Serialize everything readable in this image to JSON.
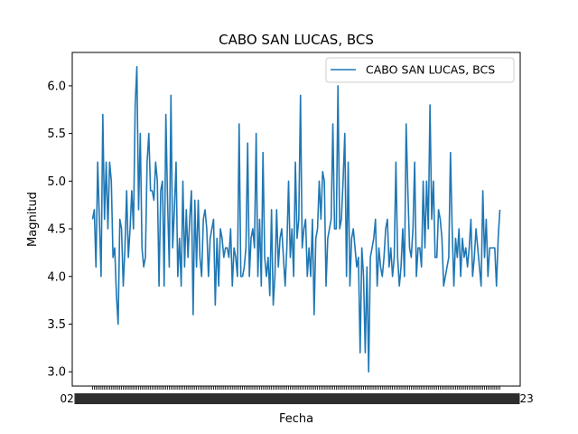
{
  "chart_data": {
    "type": "line",
    "title": "CABO SAN LUCAS, BCS",
    "xlabel": "Fecha",
    "ylabel": "Magnitud",
    "ylim": [
      2.85,
      6.35
    ],
    "yticks": [
      3.0,
      3.5,
      4.0,
      4.5,
      5.0,
      5.5,
      6.0
    ],
    "ytick_labels": [
      "3.0",
      "3.5",
      "4.0",
      "4.5",
      "5.0",
      "5.5",
      "6.0"
    ],
    "xticks_note": "",
    "x_first_tick_label": "02",
    "x_last_tick_label": "23",
    "grid": false,
    "legend_position": "top-right",
    "colors": {
      "series": "#1f77b4"
    },
    "series": [
      {
        "name": "CABO SAN LUCAS, BCS",
        "values": [
          4.6,
          4.7,
          4.1,
          5.2,
          4.6,
          4.0,
          5.7,
          4.6,
          5.2,
          4.5,
          5.2,
          5.0,
          4.2,
          4.3,
          3.8,
          3.5,
          4.6,
          4.5,
          3.9,
          4.3,
          4.9,
          4.2,
          4.5,
          4.9,
          4.5,
          5.8,
          6.2,
          4.7,
          5.5,
          4.3,
          4.1,
          4.2,
          5.2,
          5.5,
          4.9,
          4.9,
          4.8,
          5.2,
          5.0,
          3.9,
          4.9,
          5.0,
          3.9,
          5.7,
          4.8,
          4.1,
          5.9,
          4.3,
          4.7,
          5.2,
          4.0,
          4.4,
          3.9,
          5.0,
          4.1,
          4.7,
          4.2,
          4.6,
          4.9,
          3.6,
          4.8,
          4.1,
          4.8,
          4.2,
          4.0,
          4.6,
          4.7,
          4.5,
          4.0,
          4.4,
          4.5,
          4.6,
          3.7,
          4.4,
          3.9,
          4.5,
          4.4,
          4.2,
          4.3,
          4.3,
          4.2,
          4.5,
          3.9,
          4.3,
          4.2,
          4.0,
          5.6,
          4.0,
          4.0,
          4.1,
          4.3,
          5.4,
          4.0,
          4.4,
          4.5,
          4.3,
          5.5,
          4.0,
          4.6,
          3.9,
          5.3,
          4.2,
          4.0,
          4.2,
          3.8,
          4.7,
          3.7,
          4.0,
          4.7,
          4.1,
          4.4,
          4.5,
          4.2,
          3.9,
          4.3,
          5.0,
          4.2,
          4.5,
          4.0,
          5.2,
          4.4,
          4.6,
          5.9,
          4.3,
          4.5,
          4.6,
          4.0,
          4.3,
          4.0,
          4.6,
          3.6,
          4.4,
          4.5,
          5.0,
          4.6,
          5.1,
          5.0,
          3.9,
          4.4,
          4.5,
          4.6,
          5.6,
          4.5,
          4.5,
          6.0,
          4.5,
          4.6,
          5.0,
          5.5,
          4.0,
          5.2,
          3.9,
          4.4,
          4.5,
          4.3,
          4.1,
          4.2,
          3.2,
          4.3,
          4.0,
          3.2,
          4.1,
          3.0,
          4.2,
          4.3,
          4.4,
          4.6,
          3.9,
          4.3,
          4.1,
          4.0,
          4.2,
          4.5,
          4.6,
          4.1,
          4.3,
          4.0,
          4.2,
          5.2,
          4.2,
          3.9,
          4.1,
          4.5,
          4.0,
          5.6,
          4.9,
          4.3,
          4.2,
          4.5,
          5.2,
          4.0,
          4.3,
          4.3,
          4.1,
          5.0,
          4.3,
          5.0,
          4.5,
          5.8,
          4.6,
          5.0,
          4.2,
          4.2,
          4.7,
          4.6,
          4.4,
          3.9,
          4.0,
          4.1,
          4.2,
          5.3,
          4.5,
          3.9,
          4.4,
          4.2,
          4.5,
          4.0,
          4.4,
          4.2,
          4.3,
          4.1,
          4.3,
          4.6,
          4.0,
          4.2,
          4.5,
          4.3,
          4.1,
          3.9,
          4.9,
          4.2,
          4.6,
          4.0,
          4.3,
          4.3,
          4.3,
          4.3,
          3.9,
          4.4,
          4.7
        ]
      }
    ]
  }
}
